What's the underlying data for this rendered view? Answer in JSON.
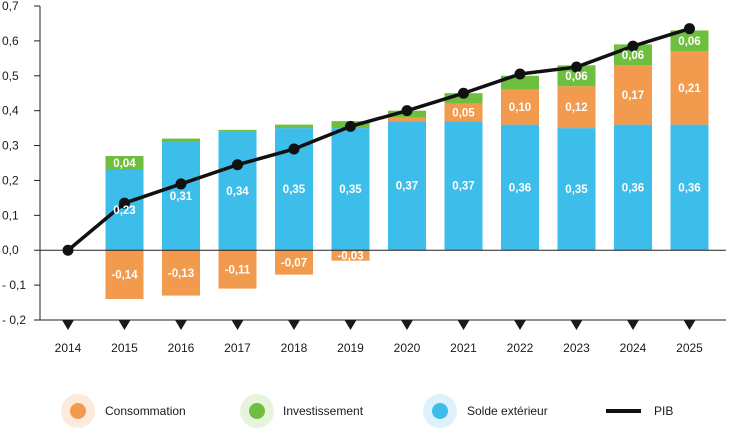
{
  "chart_data": {
    "type": "bar",
    "stacked": true,
    "categories": [
      "2014",
      "2015",
      "2016",
      "2017",
      "2018",
      "2019",
      "2020",
      "2021",
      "2022",
      "2023",
      "2024",
      "2025"
    ],
    "yticks": [
      "0,7",
      "0,6",
      "0,5",
      "0,4",
      "0,3",
      "0,2",
      "0,1",
      "0,0",
      "- 0,1",
      "- 0,2"
    ],
    "ylim": [
      -0.2,
      0.7
    ],
    "grid": false,
    "legend_position": "bottom",
    "series": [
      {
        "name": "Solde extérieur",
        "color": "#3dbde9",
        "values": [
          0,
          0.23,
          0.31,
          0.34,
          0.35,
          0.35,
          0.37,
          0.37,
          0.36,
          0.35,
          0.36,
          0.36
        ],
        "labels": [
          "",
          "0,23",
          "0,31",
          "0,34",
          "0,35",
          "0,35",
          "0,37",
          "0,37",
          "0,36",
          "0,35",
          "0,36",
          "0,36"
        ]
      },
      {
        "name": "Consommation",
        "color": "#f29a4e",
        "values": [
          0,
          -0.14,
          -0.13,
          -0.11,
          -0.07,
          -0.03,
          0.01,
          0.05,
          0.1,
          0.12,
          0.17,
          0.21
        ],
        "labels": [
          "",
          "-0,14",
          "-0,13",
          "-0,11",
          "-0,07",
          "-0,03",
          "",
          "0,05",
          "0,10",
          "0,12",
          "0,17",
          "0,21"
        ]
      },
      {
        "name": "Investissement",
        "color": "#6ebe3f",
        "values": [
          0,
          0.04,
          0.01,
          0.005,
          0.01,
          0.02,
          0.02,
          0.03,
          0.04,
          0.06,
          0.06,
          0.06
        ],
        "labels": [
          "",
          "0,04",
          "",
          "",
          "",
          "",
          "",
          "",
          "",
          "0,06",
          "0,06",
          "0,06"
        ]
      },
      {
        "name": "PIB",
        "type": "line",
        "color": "#111111",
        "values": [
          0,
          0.135,
          0.19,
          0.245,
          0.29,
          0.355,
          0.4,
          0.45,
          0.505,
          0.525,
          0.585,
          0.635
        ]
      }
    ],
    "legend": {
      "consommation": "Consommation",
      "investissement": "Investissement",
      "solde": "Solde extérieur",
      "pib": "PIB"
    }
  }
}
